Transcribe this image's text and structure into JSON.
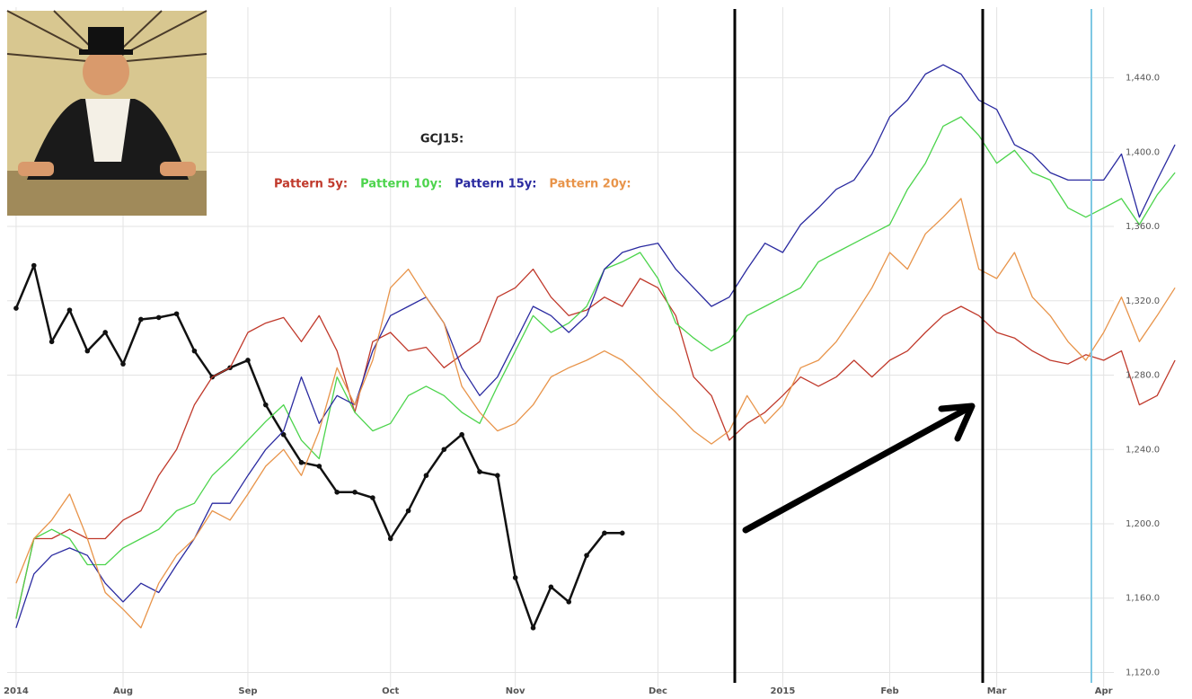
{
  "chart_data": {
    "type": "line",
    "title": "GCJ15:",
    "categories": [
      "2014",
      null,
      null,
      null,
      null,
      null,
      "Aug",
      null,
      null,
      null,
      null,
      null,
      null,
      "Sep",
      null,
      null,
      null,
      null,
      null,
      null,
      null,
      "Oct",
      null,
      null,
      null,
      null,
      null,
      null,
      "Nov",
      null,
      null,
      null,
      null,
      null,
      null,
      null,
      "Dec",
      null,
      null,
      null,
      null,
      null,
      null,
      "2015",
      null,
      null,
      null,
      null,
      null,
      "Feb",
      null,
      null,
      null,
      null,
      null,
      "Mar",
      null,
      null,
      null,
      null,
      null,
      "Apr",
      null,
      null,
      null,
      null
    ],
    "series": [
      {
        "color": "#111111",
        "marker": true,
        "values": [
          1316,
          1339,
          1298,
          1315,
          1293,
          1303,
          1286,
          1310,
          1311,
          1313,
          1293,
          1279,
          1284,
          1288,
          1264,
          1248,
          1233,
          1231,
          1217,
          1217,
          1214,
          1192,
          1207,
          1226,
          1240,
          1248,
          1228,
          1226,
          1171,
          1144,
          1166,
          1158,
          1183,
          1195,
          1195,
          null,
          null,
          null,
          null,
          null,
          null,
          null,
          null,
          null,
          null,
          null,
          null,
          null,
          null,
          null,
          null,
          null,
          null,
          null,
          null,
          null,
          null,
          null,
          null,
          null,
          null,
          null,
          null,
          null,
          null,
          null
        ]
      },
      {
        "name": "Pattern 5y:",
        "color": "#c0392b",
        "values": [
          1149,
          1192,
          1192,
          1197,
          1192,
          1192,
          1202,
          1207,
          1226,
          1240,
          1264,
          1279,
          1284,
          1303,
          1308,
          1311,
          1298,
          1312,
          1293,
          1260,
          1298,
          1303,
          1293,
          1295,
          1284,
          1291,
          1298,
          1322,
          1327,
          1337,
          1322,
          1312,
          1315,
          1322,
          1317,
          1332,
          1327,
          1312,
          1279,
          1269,
          1245,
          1254,
          1260,
          1269,
          1279,
          1274,
          1279,
          1288,
          1279,
          1288,
          1293,
          1303,
          1312,
          1317,
          1312,
          1303,
          1300,
          1293,
          1288,
          1286,
          1291,
          1288,
          1293,
          1264,
          1269,
          1288
        ]
      },
      {
        "name": "Pattern 10y:",
        "color": "#4cd44c",
        "values": [
          1149,
          1192,
          1197,
          1192,
          1178,
          1178,
          1187,
          1192,
          1197,
          1207,
          1211,
          1226,
          1235,
          1245,
          1255,
          1264,
          1245,
          1235,
          1279,
          1260,
          1250,
          1254,
          1269,
          1274,
          1269,
          1260,
          1254,
          1274,
          1293,
          1312,
          1303,
          1308,
          1317,
          1337,
          1341,
          1346,
          1332,
          1308,
          1300,
          1293,
          1298,
          1312,
          1317,
          1322,
          1327,
          1341,
          1346,
          1351,
          1356,
          1361,
          1380,
          1394,
          1414,
          1419,
          1409,
          1394,
          1401,
          1389,
          1385,
          1370,
          1365,
          1370,
          1375,
          1361,
          1377,
          1389
        ]
      },
      {
        "name": "Pattern 15y:",
        "color": "#2a2aa0",
        "values": [
          1144,
          1173,
          1183,
          1187,
          1183,
          1168,
          1158,
          1168,
          1163,
          1178,
          1192,
          1211,
          1211,
          1226,
          1240,
          1250,
          1279,
          1254,
          1269,
          1264,
          1293,
          1312,
          1317,
          1322,
          1308,
          1284,
          1269,
          1279,
          1298,
          1317,
          1312,
          1303,
          1312,
          1337,
          1346,
          1349,
          1351,
          1337,
          1327,
          1317,
          1322,
          1337,
          1351,
          1346,
          1361,
          1370,
          1380,
          1385,
          1399,
          1419,
          1428,
          1442,
          1447,
          1442,
          1428,
          1423,
          1404,
          1399,
          1389,
          1385,
          1385,
          1385,
          1399,
          1365,
          1385,
          1404
        ]
      },
      {
        "name": "Pattern 20y:",
        "color": "#e8944a",
        "values": [
          1168,
          1192,
          1202,
          1216,
          1192,
          1163,
          1154,
          1144,
          1168,
          1183,
          1192,
          1207,
          1202,
          1216,
          1231,
          1240,
          1226,
          1250,
          1284,
          1264,
          1288,
          1327,
          1337,
          1322,
          1308,
          1274,
          1260,
          1250,
          1254,
          1264,
          1279,
          1284,
          1288,
          1293,
          1288,
          1279,
          1269,
          1260,
          1250,
          1243,
          1250,
          1269,
          1254,
          1264,
          1284,
          1288,
          1298,
          1312,
          1327,
          1346,
          1337,
          1356,
          1365,
          1375,
          1337,
          1332,
          1346,
          1322,
          1312,
          1298,
          1288,
          1303,
          1322,
          1298,
          1312,
          1327
        ]
      }
    ],
    "ylim": [
      1112,
      1478
    ],
    "yticks": [
      {
        "value": 1120,
        "label": "1,120.0"
      },
      {
        "value": 1160,
        "label": "1,160.0"
      },
      {
        "value": 1200,
        "label": "1,200.0"
      },
      {
        "value": 1240,
        "label": "1,240.0"
      },
      {
        "value": 1280,
        "label": "1,280.0"
      },
      {
        "value": 1320,
        "label": "1,320.0"
      },
      {
        "value": 1360,
        "label": "1,360.0"
      },
      {
        "value": 1400,
        "label": "1,400.0"
      },
      {
        "value": 1440,
        "label": "1,440.0"
      }
    ],
    "grid": true
  }
}
